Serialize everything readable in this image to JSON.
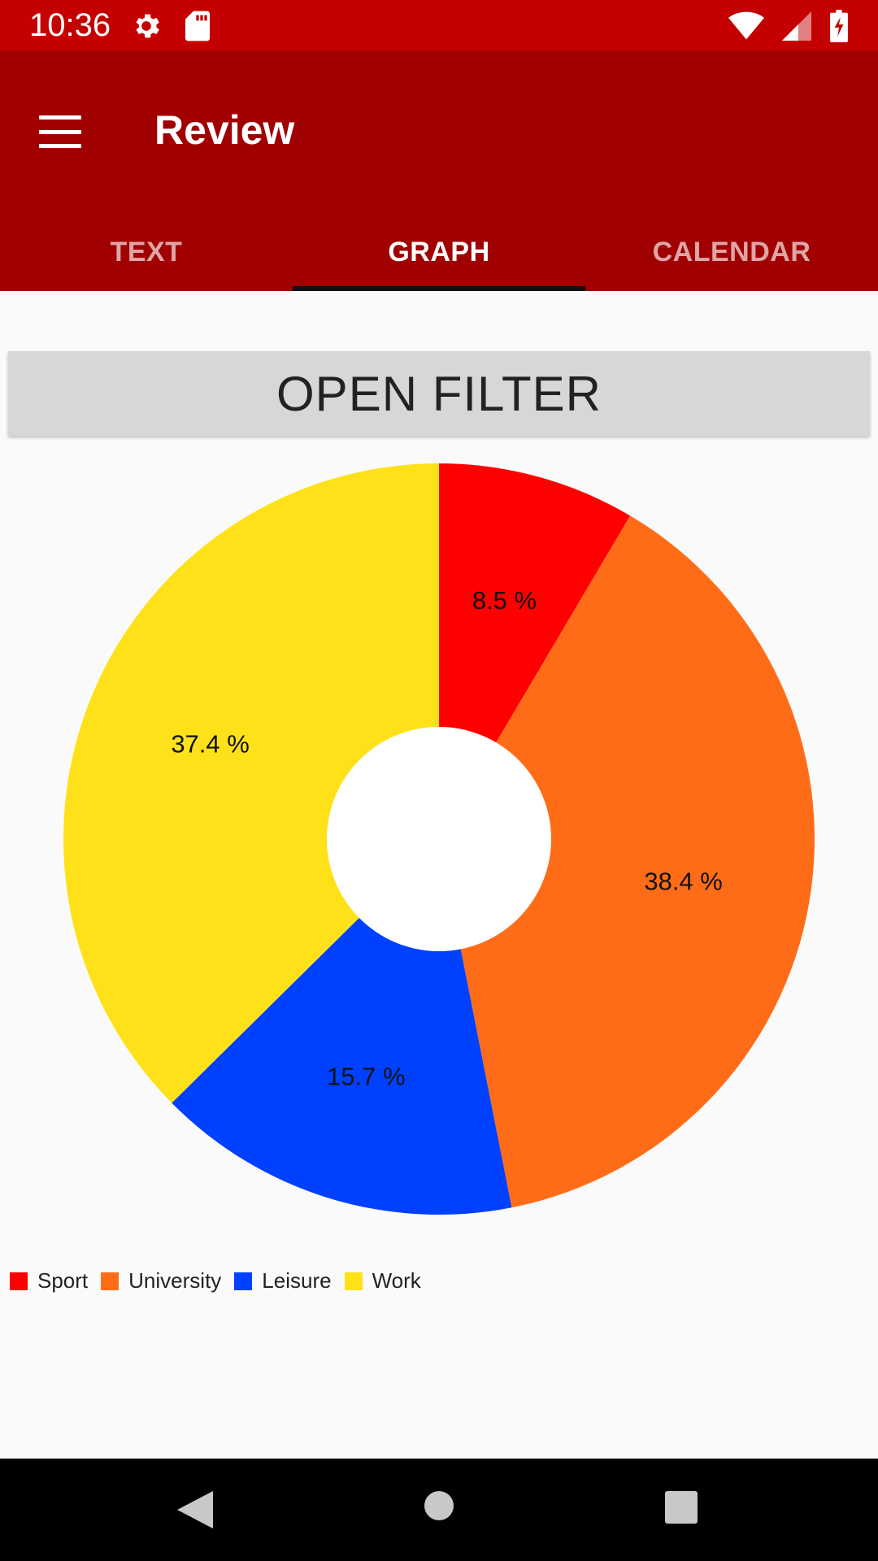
{
  "status_bar": {
    "time": "10:36",
    "left_icons": [
      "gear-icon",
      "sd-card-icon"
    ],
    "right_icons": [
      "wifi-icon",
      "cell-signal-icon",
      "battery-charging-icon"
    ]
  },
  "app_bar": {
    "title": "Review",
    "menu_icon": "hamburger-menu-icon",
    "background_color": "#a00000"
  },
  "tabs": [
    {
      "label": "TEXT",
      "active": false
    },
    {
      "label": "GRAPH",
      "active": true
    },
    {
      "label": "CALENDAR",
      "active": false
    }
  ],
  "filter_button": {
    "label": "OPEN FILTER"
  },
  "chart_data": {
    "type": "pie",
    "donut": true,
    "slices": [
      {
        "label": "Sport",
        "value": 8.5,
        "display": "8.5 %",
        "color": "#ff0000"
      },
      {
        "label": "University",
        "value": 38.4,
        "display": "38.4 %",
        "color": "#ff6c17"
      },
      {
        "label": "Leisure",
        "value": 15.7,
        "display": "15.7 %",
        "color": "#0040ff"
      },
      {
        "label": "Work",
        "value": 37.4,
        "display": "37.4 %",
        "color": "#ffe119"
      }
    ],
    "legend_position": "bottom-left"
  },
  "nav_bar": {
    "icons": [
      "back-icon",
      "home-icon",
      "recent-apps-icon"
    ]
  }
}
